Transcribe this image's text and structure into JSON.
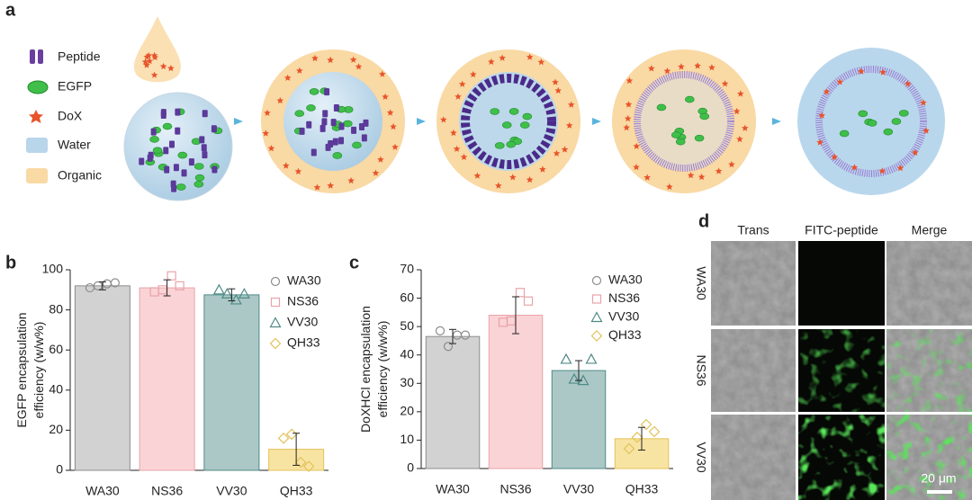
{
  "panel_labels": [
    "a",
    "b",
    "c",
    "d"
  ],
  "panel_a": {
    "legend": [
      "Peptide",
      "EGFP",
      "DoX",
      "Water",
      "Organic"
    ]
  },
  "chart_data": [
    {
      "type": "bar",
      "ylabel": [
        "EGFP encapsulation",
        "efficiency (w/w%)"
      ],
      "categories": [
        "WA30",
        "NS36",
        "VV30",
        "QH33"
      ],
      "values": [
        92,
        91,
        87.5,
        10.5
      ],
      "errors": [
        2,
        4,
        3,
        8
      ],
      "points": [
        [
          91,
          92,
          93,
          93.5
        ],
        [
          89,
          90,
          97,
          92
        ],
        [
          90,
          88,
          85,
          88
        ],
        [
          16,
          18,
          4,
          2
        ]
      ],
      "colors": [
        "#d2d2d2",
        "#fad3d6",
        "#abc8c6",
        "#f8e4a2"
      ],
      "edge_colors": [
        "#8c8c8c",
        "#e9a3a9",
        "#4f8a86",
        "#e3c25a"
      ],
      "markers": [
        "circle",
        "square",
        "triangle",
        "diamond"
      ],
      "ylim": [
        0,
        100
      ],
      "yticks": [
        0,
        20,
        40,
        60,
        80,
        100
      ],
      "legend": "upper right"
    },
    {
      "type": "bar",
      "ylabel": [
        "DoXHCl encapsulation",
        "efficiency (w/w%)"
      ],
      "categories": [
        "WA30",
        "NS36",
        "VV30",
        "QH33"
      ],
      "values": [
        46.5,
        54,
        34.5,
        10.5
      ],
      "errors": [
        2.5,
        6.5,
        3.5,
        4
      ],
      "points": [
        [
          48.5,
          43,
          47,
          47
        ],
        [
          51.5,
          52,
          62,
          59
        ],
        [
          38.5,
          31.5,
          31,
          38.5
        ],
        [
          7,
          11,
          15.5,
          13
        ]
      ],
      "colors": [
        "#d2d2d2",
        "#fad3d6",
        "#abc8c6",
        "#f8e4a2"
      ],
      "edge_colors": [
        "#8c8c8c",
        "#e9a3a9",
        "#4f8a86",
        "#e3c25a"
      ],
      "markers": [
        "circle",
        "square",
        "triangle",
        "diamond"
      ],
      "ylim": [
        0,
        70
      ],
      "yticks": [
        0,
        10,
        20,
        30,
        40,
        50,
        60,
        70
      ],
      "legend": "upper right"
    }
  ],
  "panel_d": {
    "columns": [
      "Trans",
      "FITC-peptide",
      "Merge"
    ],
    "rows": [
      "WA30",
      "NS36",
      "VV30"
    ],
    "scale_bar": "20 μm"
  }
}
